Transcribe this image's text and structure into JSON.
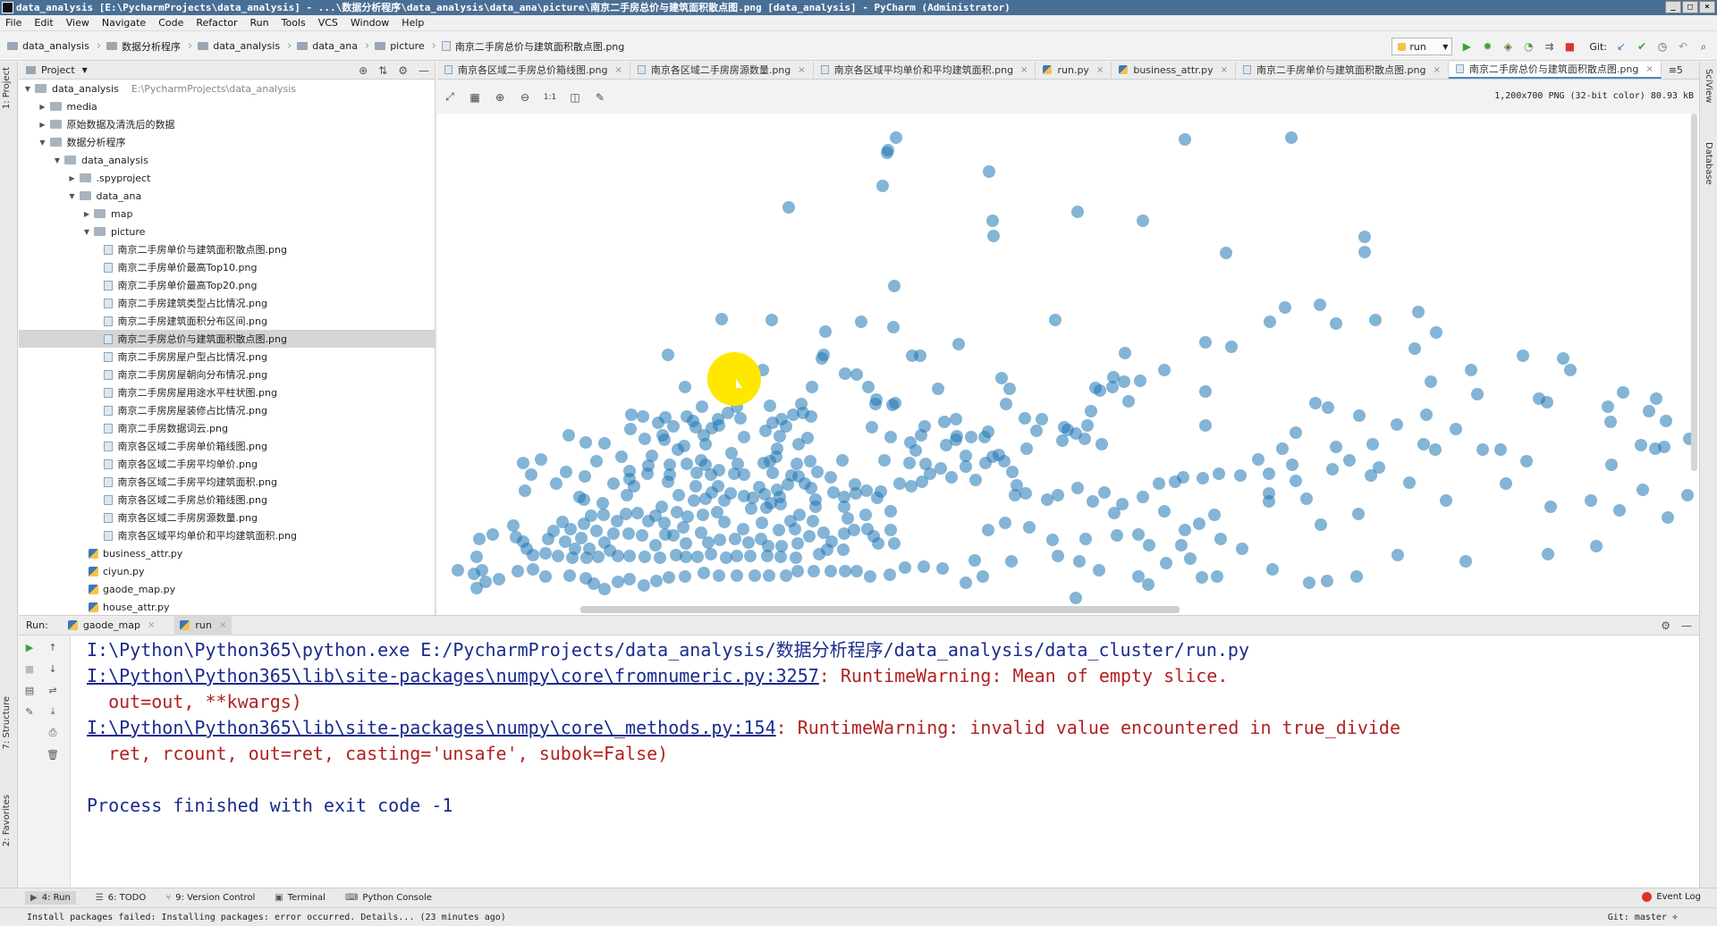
{
  "window": {
    "title": "data_analysis [E:\\PycharmProjects\\data_analysis] - ...\\数据分析程序\\data_analysis\\data_ana\\picture\\南京二手房总价与建筑面积散点图.png [data_analysis] - PyCharm (Administrator)",
    "min": "_",
    "max": "□",
    "close": "×"
  },
  "menu": [
    "File",
    "Edit",
    "View",
    "Navigate",
    "Code",
    "Refactor",
    "Run",
    "Tools",
    "VCS",
    "Window",
    "Help"
  ],
  "breadcrumb": [
    "data_analysis",
    "数据分析程序",
    "data_analysis",
    "data_ana",
    "picture",
    "南京二手房总价与建筑面积散点图.png"
  ],
  "toolbar": {
    "run_config": "run",
    "git_label": "Git:"
  },
  "left_strip": {
    "project": "1: Project",
    "structure": "7: Structure",
    "favorites": "2: Favorites"
  },
  "right_strip": {
    "sciview": "SciView",
    "database": "Database"
  },
  "project": {
    "header": "Project",
    "tree": [
      {
        "label": "data_analysis",
        "path": "E:\\PycharmProjects\\data_analysis",
        "type": "folder",
        "depth": 0,
        "arrow": "▼"
      },
      {
        "label": "media",
        "type": "folder",
        "depth": 1,
        "arrow": "▶"
      },
      {
        "label": "原始数据及清洗后的数据",
        "type": "folder",
        "depth": 1,
        "arrow": "▶"
      },
      {
        "label": "数据分析程序",
        "type": "folder",
        "depth": 1,
        "arrow": "▼"
      },
      {
        "label": "data_analysis",
        "type": "folder",
        "depth": 2,
        "arrow": "▼"
      },
      {
        "label": ".spyproject",
        "type": "folder",
        "depth": 3,
        "arrow": "▶"
      },
      {
        "label": "data_ana",
        "type": "folder",
        "depth": 3,
        "arrow": "▼"
      },
      {
        "label": "map",
        "type": "folder",
        "depth": 4,
        "arrow": "▶"
      },
      {
        "label": "picture",
        "type": "folder",
        "depth": 4,
        "arrow": "▼"
      },
      {
        "label": "南京二手房单价与建筑面积散点图.png",
        "type": "image",
        "depth": 5
      },
      {
        "label": "南京二手房单价最高Top10.png",
        "type": "image",
        "depth": 5
      },
      {
        "label": "南京二手房单价最高Top20.png",
        "type": "image",
        "depth": 5
      },
      {
        "label": "南京二手房建筑类型占比情况.png",
        "type": "image",
        "depth": 5
      },
      {
        "label": "南京二手房建筑面积分布区间.png",
        "type": "image",
        "depth": 5
      },
      {
        "label": "南京二手房总价与建筑面积散点图.png",
        "type": "image",
        "depth": 5,
        "selected": true
      },
      {
        "label": "南京二手房房屋户型占比情况.png",
        "type": "image",
        "depth": 5
      },
      {
        "label": "南京二手房房屋朝向分布情况.png",
        "type": "image",
        "depth": 5
      },
      {
        "label": "南京二手房房屋用途水平柱状图.png",
        "type": "image",
        "depth": 5
      },
      {
        "label": "南京二手房房屋装修占比情况.png",
        "type": "image",
        "depth": 5
      },
      {
        "label": "南京二手房数据词云.png",
        "type": "image",
        "depth": 5
      },
      {
        "label": "南京各区域二手房单价箱线图.png",
        "type": "image",
        "depth": 5
      },
      {
        "label": "南京各区域二手房平均单价.png",
        "type": "image",
        "depth": 5
      },
      {
        "label": "南京各区域二手房平均建筑面积.png",
        "type": "image",
        "depth": 5
      },
      {
        "label": "南京各区域二手房总价箱线图.png",
        "type": "image",
        "depth": 5
      },
      {
        "label": "南京各区域二手房房源数量.png",
        "type": "image",
        "depth": 5
      },
      {
        "label": "南京各区域平均单价和平均建筑面积.png",
        "type": "image",
        "depth": 5
      },
      {
        "label": "business_attr.py",
        "type": "python",
        "depth": 4
      },
      {
        "label": "ciyun.py",
        "type": "python",
        "depth": 4
      },
      {
        "label": "gaode_map.py",
        "type": "python",
        "depth": 4
      },
      {
        "label": "house_attr.py",
        "type": "python",
        "depth": 4
      }
    ]
  },
  "editor_tabs": [
    {
      "label": "南京各区域二手房总价箱线图.png",
      "type": "image"
    },
    {
      "label": "南京各区域二手房房源数量.png",
      "type": "image"
    },
    {
      "label": "南京各区域平均单价和平均建筑面积.png",
      "type": "image"
    },
    {
      "label": "run.py",
      "type": "python"
    },
    {
      "label": "business_attr.py",
      "type": "python"
    },
    {
      "label": "南京二手房单价与建筑面积散点图.png",
      "type": "image"
    },
    {
      "label": "南京二手房总价与建筑面积散点图.png",
      "type": "image",
      "active": true
    }
  ],
  "tabs_overflow": "≡5",
  "image_viewer": {
    "info": "1,200x700 PNG (32-bit color) 80.93 kB",
    "zoom_label": "1:1"
  },
  "scatter_color": "#1f77b4",
  "run": {
    "label": "Run:",
    "tabs": [
      {
        "label": "gaode_map"
      },
      {
        "label": "run",
        "active": true
      }
    ],
    "console": [
      {
        "kind": "cmd",
        "text": "I:\\Python\\Python365\\python.exe E:/PycharmProjects/data_analysis/数据分析程序/data_analysis/data_cluster/run.py"
      },
      {
        "kind": "warn",
        "link": "I:\\Python\\Python365\\lib\\site-packages\\numpy\\core\\fromnumeric.py:3257",
        "text": ": RuntimeWarning: Mean of empty slice."
      },
      {
        "kind": "warnplain",
        "text": "  out=out, **kwargs)"
      },
      {
        "kind": "warn",
        "link": "I:\\Python\\Python365\\lib\\site-packages\\numpy\\core\\_methods.py:154",
        "text": ": RuntimeWarning: invalid value encountered in true_divide"
      },
      {
        "kind": "warnplain",
        "text": "  ret, rcount, out=ret, casting='unsafe', subok=False)"
      },
      {
        "kind": "blank",
        "text": ""
      },
      {
        "kind": "cmd",
        "text": "Process finished with exit code -1"
      }
    ]
  },
  "bottom_tabs": [
    {
      "label": "4: Run",
      "active": true
    },
    {
      "label": "6: TODO"
    },
    {
      "label": "9: Version Control"
    },
    {
      "label": "Terminal"
    },
    {
      "label": "Python Console"
    }
  ],
  "event_log": "Event Log",
  "status": {
    "message": "Install packages failed: Installing packages: error occurred. Details... (23 minutes ago)",
    "git_branch": "Git: master ÷"
  }
}
